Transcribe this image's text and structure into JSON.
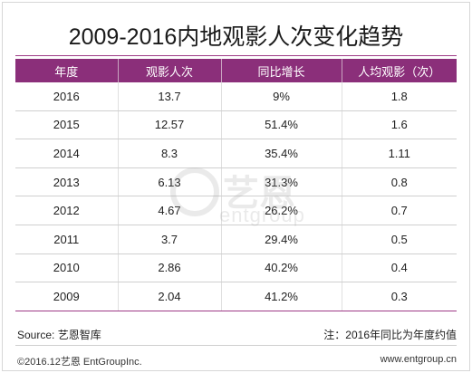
{
  "title": "2009-2016内地观影人次变化趋势",
  "chart_data": {
    "type": "table",
    "title": "2009-2016内地观影人次变化趋势",
    "columns": [
      "年度",
      "观影人次",
      "同比增长",
      "人均观影（次）"
    ],
    "rows": [
      [
        "2016",
        "13.7",
        "9%",
        "1.8"
      ],
      [
        "2015",
        "12.57",
        "51.4%",
        "1.6"
      ],
      [
        "2014",
        "8.3",
        "35.4%",
        "1.11"
      ],
      [
        "2013",
        "6.13",
        "31.3%",
        "0.8"
      ],
      [
        "2012",
        "4.67",
        "26.2%",
        "0.7"
      ],
      [
        "2011",
        "3.7",
        "29.4%",
        "0.5"
      ],
      [
        "2010",
        "2.86",
        "40.2%",
        "0.4"
      ],
      [
        "2009",
        "2.04",
        "41.2%",
        "0.3"
      ]
    ]
  },
  "source": "Source: 艺恩智库",
  "note": "注：2016年同比为年度约值",
  "watermark": {
    "main": "艺恩",
    "sub": "entgroup"
  },
  "copyright": "©2016.12艺恩 EntGroupInc.",
  "website": "www.entgroup.cn",
  "colors": {
    "header_bg": "#8b2f7a",
    "accent": "#9e3a86"
  }
}
